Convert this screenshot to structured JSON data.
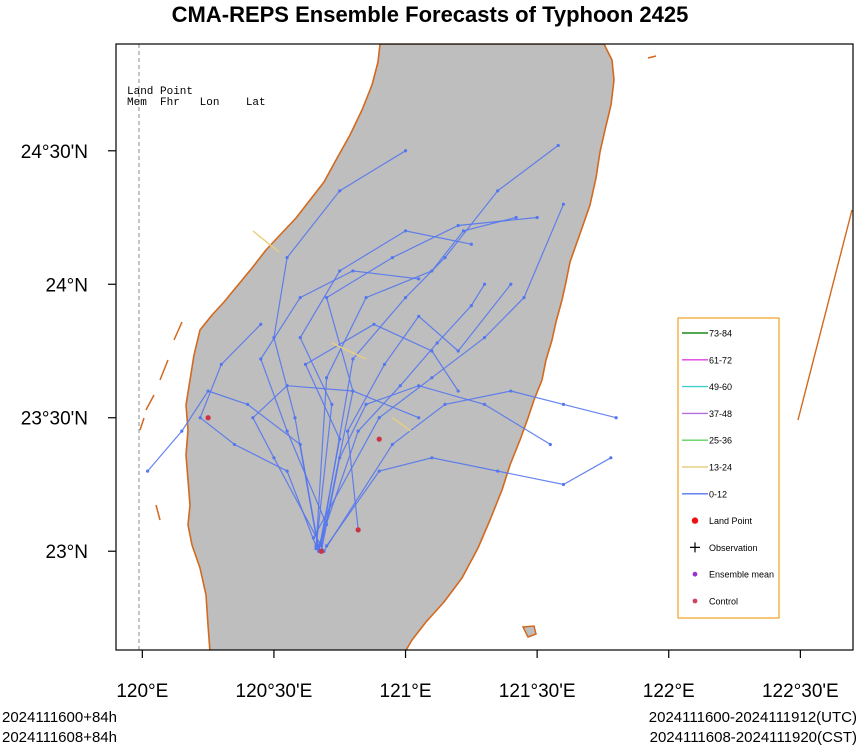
{
  "title": "CMA-REPS Ensemble Forecasts of Typhoon 2425",
  "header_table": {
    "line1": "Land Point",
    "line2": "Mem  Fhr   Lon    Lat"
  },
  "axes": {
    "x_ticks": [
      {
        "label": "120°E",
        "lon": 120.0
      },
      {
        "label": "120°30'E",
        "lon": 120.5
      },
      {
        "label": "121°E",
        "lon": 121.0
      },
      {
        "label": "121°30'E",
        "lon": 121.5
      },
      {
        "label": "122°E",
        "lon": 122.0
      },
      {
        "label": "122°30'E",
        "lon": 122.5
      }
    ],
    "y_ticks": [
      {
        "label": "24°30'N",
        "lat": 24.5
      },
      {
        "label": "24°N",
        "lat": 24.0
      },
      {
        "label": "23°30'N",
        "lat": 23.5
      },
      {
        "label": "23°N",
        "lat": 23.0
      }
    ],
    "lon_range": [
      119.9,
      122.7
    ],
    "lat_range": [
      22.63,
      24.9
    ]
  },
  "legend": {
    "placement": "right",
    "items": [
      {
        "label": "73-84",
        "kind": "line",
        "color": "#1a8a1a"
      },
      {
        "label": "61-72",
        "kind": "line",
        "color": "#e040e0"
      },
      {
        "label": "49-60",
        "kind": "line",
        "color": "#3fd0c8"
      },
      {
        "label": "37-48",
        "kind": "line",
        "color": "#b070e0"
      },
      {
        "label": "25-36",
        "kind": "line",
        "color": "#60d060"
      },
      {
        "label": "13-24",
        "kind": "line",
        "color": "#e8cf80"
      },
      {
        "label": "0-12",
        "kind": "line",
        "color": "#5577ee"
      },
      {
        "label": "Land Point",
        "kind": "dot",
        "color": "#ee1111"
      },
      {
        "label": "Observation",
        "kind": "plus",
        "color": "#000000"
      },
      {
        "label": "Ensemble mean",
        "kind": "dot",
        "color": "#9a33cc"
      },
      {
        "label": "Control",
        "kind": "dot",
        "color": "#cc4466"
      }
    ]
  },
  "colors": {
    "land": "#bebebe",
    "coast": "#d2691e",
    "track": "#5577ee",
    "track_alt": "#e8cf80",
    "legend_border": "#f0a020",
    "landpoint": "#cc3344"
  },
  "chart_data": {
    "type": "map",
    "tracks_lonlat": [
      [
        [
          120.67,
          23.0
        ],
        [
          120.75,
          23.42
        ],
        [
          120.62,
          23.7
        ],
        [
          120.88,
          23.85
        ],
        [
          121.1,
          23.75
        ],
        [
          121.2,
          23.6
        ]
      ],
      [
        [
          120.82,
          23.08
        ],
        [
          120.78,
          23.45
        ],
        [
          120.92,
          23.7
        ],
        [
          121.05,
          23.88
        ],
        [
          121.2,
          23.75
        ],
        [
          121.4,
          24.0
        ]
      ],
      [
        [
          120.66,
          23.01
        ],
        [
          120.72,
          23.55
        ],
        [
          120.6,
          23.8
        ],
        [
          120.75,
          24.05
        ],
        [
          121.0,
          24.2
        ],
        [
          121.25,
          24.15
        ]
      ],
      [
        [
          120.68,
          23.02
        ],
        [
          120.8,
          23.6
        ],
        [
          120.7,
          23.95
        ],
        [
          120.95,
          24.1
        ],
        [
          121.2,
          24.22
        ],
        [
          121.5,
          24.25
        ]
      ],
      [
        [
          120.7,
          23.1
        ],
        [
          120.55,
          23.45
        ],
        [
          120.45,
          23.72
        ],
        [
          120.6,
          23.95
        ],
        [
          120.8,
          24.05
        ],
        [
          121.05,
          24.02
        ]
      ],
      [
        [
          120.65,
          23.05
        ],
        [
          120.9,
          23.5
        ],
        [
          121.1,
          23.65
        ],
        [
          121.3,
          23.8
        ],
        [
          121.45,
          23.95
        ],
        [
          121.6,
          24.3
        ]
      ],
      [
        [
          120.69,
          23.0
        ],
        [
          120.95,
          23.4
        ],
        [
          121.15,
          23.55
        ],
        [
          121.4,
          23.6
        ],
        [
          121.6,
          23.55
        ],
        [
          121.8,
          23.5
        ]
      ],
      [
        [
          120.67,
          23.01
        ],
        [
          120.6,
          23.4
        ],
        [
          120.4,
          23.55
        ],
        [
          120.25,
          23.6
        ],
        [
          120.15,
          23.45
        ],
        [
          120.02,
          23.3
        ]
      ],
      [
        [
          120.66,
          23.02
        ],
        [
          120.55,
          23.3
        ],
        [
          120.35,
          23.4
        ],
        [
          120.22,
          23.5
        ],
        [
          120.3,
          23.7
        ],
        [
          120.45,
          23.85
        ]
      ],
      [
        [
          120.68,
          23.0
        ],
        [
          120.75,
          23.35
        ],
        [
          120.85,
          23.55
        ],
        [
          121.05,
          23.62
        ],
        [
          121.3,
          23.55
        ],
        [
          121.55,
          23.4
        ]
      ],
      [
        [
          120.7,
          23.02
        ],
        [
          120.9,
          23.3
        ],
        [
          121.1,
          23.35
        ],
        [
          121.35,
          23.3
        ],
        [
          121.6,
          23.25
        ],
        [
          121.78,
          23.35
        ]
      ],
      [
        [
          120.67,
          23.0
        ],
        [
          120.58,
          23.5
        ],
        [
          120.5,
          23.8
        ],
        [
          120.55,
          24.1
        ],
        [
          120.75,
          24.35
        ],
        [
          121.0,
          24.5
        ]
      ],
      [
        [
          120.68,
          23.03
        ],
        [
          120.8,
          23.72
        ],
        [
          121.0,
          23.95
        ],
        [
          121.15,
          24.1
        ],
        [
          121.35,
          24.35
        ],
        [
          121.58,
          24.52
        ]
      ],
      [
        [
          120.66,
          23.01
        ],
        [
          120.7,
          23.65
        ],
        [
          120.85,
          23.95
        ],
        [
          121.1,
          24.05
        ],
        [
          121.22,
          24.2
        ],
        [
          121.42,
          24.25
        ]
      ],
      [
        [
          120.69,
          23.0
        ],
        [
          120.5,
          23.35
        ],
        [
          120.42,
          23.5
        ],
        [
          120.55,
          23.62
        ],
        [
          120.8,
          23.6
        ],
        [
          121.05,
          23.5
        ]
      ],
      [
        [
          120.67,
          23.02
        ],
        [
          120.82,
          23.45
        ],
        [
          120.98,
          23.62
        ],
        [
          121.12,
          23.78
        ],
        [
          121.25,
          23.92
        ],
        [
          121.3,
          24.0
        ]
      ]
    ],
    "land_points": [
      {
        "lon": 120.82,
        "lat": 23.08
      },
      {
        "lon": 120.68,
        "lat": 23.0
      },
      {
        "lon": 120.9,
        "lat": 23.42
      },
      {
        "lon": 120.25,
        "lat": 23.5
      }
    ]
  },
  "footer": {
    "left_line1": "2024111600+84h",
    "left_line2": "2024111608+84h",
    "right_line1": "2024111600-2024111912(UTC)",
    "right_line2": "2024111608-2024111920(CST)"
  }
}
